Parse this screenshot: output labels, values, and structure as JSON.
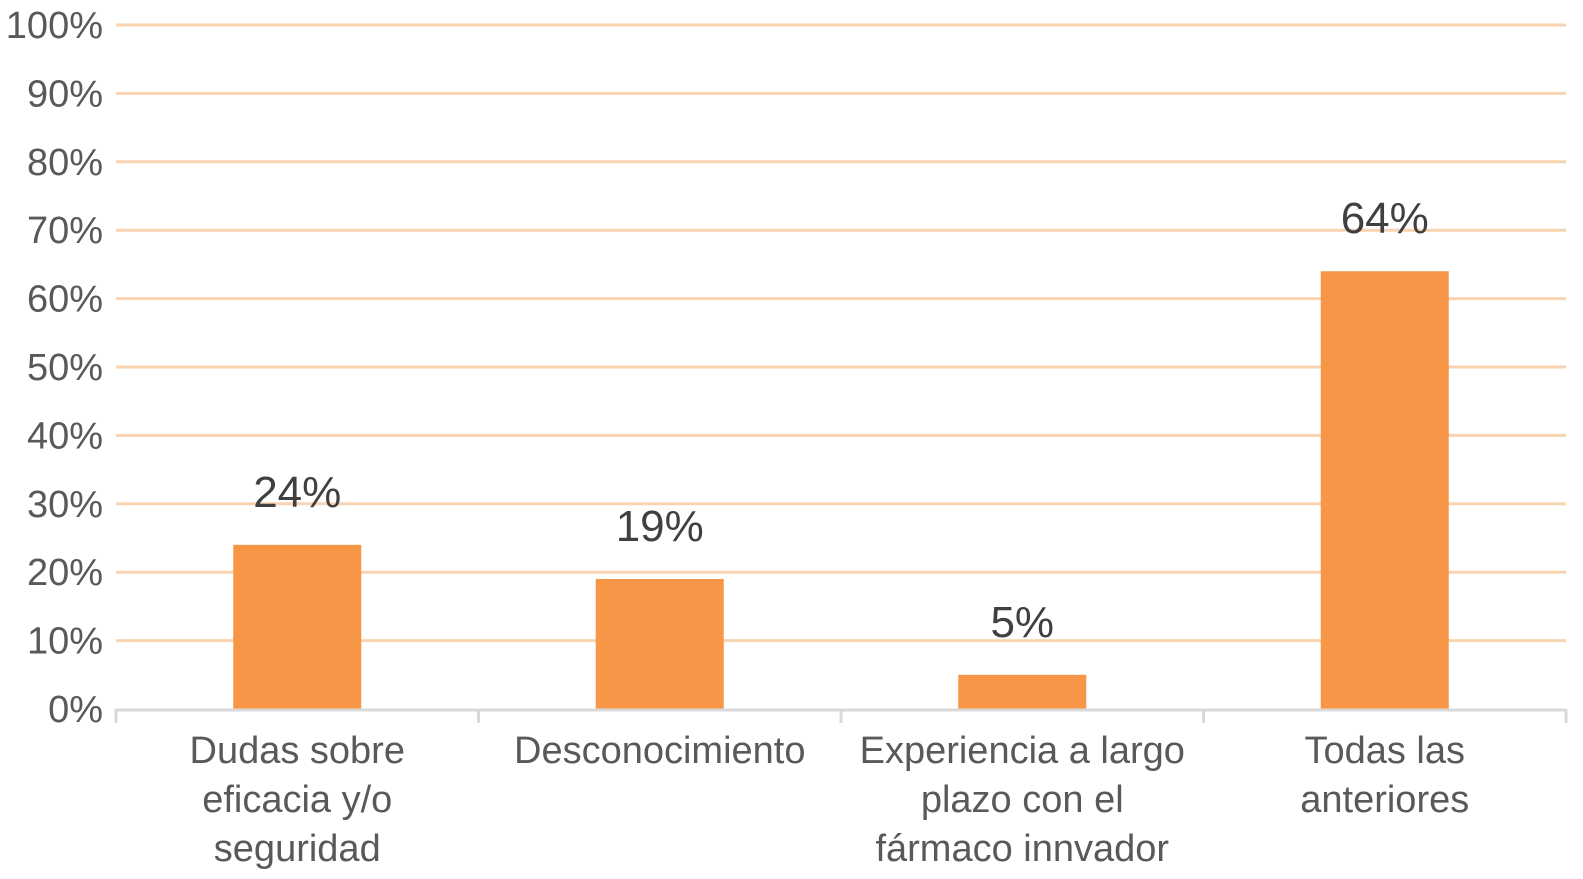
{
  "chart_data": {
    "type": "bar",
    "categories": [
      [
        "Dudas sobre",
        "eficacia y/o",
        "seguridad"
      ],
      [
        "Desconocimiento"
      ],
      [
        "Experiencia a largo",
        "plazo con el",
        "fármaco innvador"
      ],
      [
        "Todas las",
        "anteriores"
      ]
    ],
    "values": [
      24,
      19,
      5,
      64
    ],
    "data_labels": [
      "24%",
      "19%",
      "5%",
      "64%"
    ],
    "yticks": [
      "0%",
      "10%",
      "20%",
      "30%",
      "40%",
      "50%",
      "60%",
      "70%",
      "80%",
      "90%",
      "100%"
    ],
    "ylim": [
      0,
      100
    ],
    "grid": true,
    "legend": "none",
    "colors": {
      "bar": "#F79646",
      "grid": "#FAD4B0",
      "axis": "#D9D9D9"
    }
  }
}
